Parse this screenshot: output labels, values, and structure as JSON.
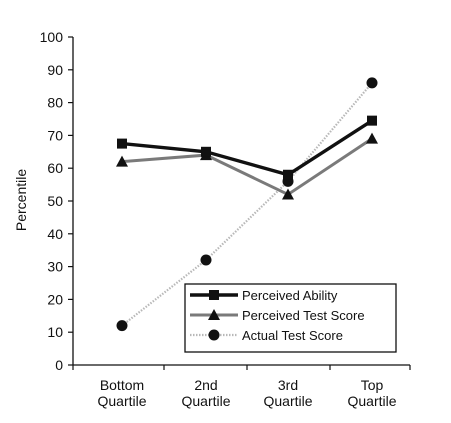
{
  "chart_data": {
    "type": "line",
    "categories": [
      "Bottom Quartile",
      "2nd Quartile",
      "3rd Quartile",
      "Top Quartile"
    ],
    "category_lines": [
      [
        "Bottom",
        "Quartile"
      ],
      [
        "2nd",
        "Quartile"
      ],
      [
        "3rd",
        "Quartile"
      ],
      [
        "Top",
        "Quartile"
      ]
    ],
    "series": [
      {
        "name": "Perceived Ability",
        "values": [
          67.5,
          65,
          58,
          74.5
        ],
        "marker": "square",
        "color": "#111111"
      },
      {
        "name": "Perceived Test Score",
        "values": [
          62,
          64,
          52,
          69
        ],
        "marker": "triangle",
        "color": "#7a7a7a"
      },
      {
        "name": "Actual Test Score",
        "values": [
          12,
          32,
          56,
          86
        ],
        "marker": "circle",
        "color": "#b5b5b5"
      }
    ],
    "ylabel": "Percentile",
    "xlabel": "",
    "ylim": [
      0,
      100
    ],
    "yticks": [
      0,
      10,
      20,
      30,
      40,
      50,
      60,
      70,
      80,
      90,
      100
    ],
    "grid": false,
    "legend_placement": "bottom-right"
  }
}
